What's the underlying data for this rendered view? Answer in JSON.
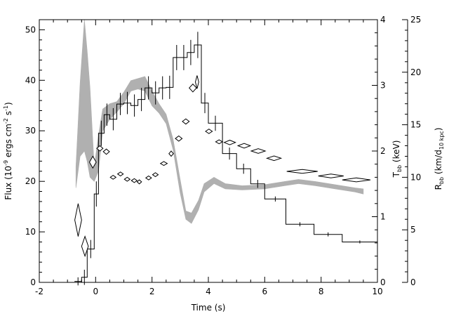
{
  "chart_data": {
    "type": "line",
    "title": "",
    "xlabel": "Time (s)",
    "xlim": [
      -2,
      10
    ],
    "xticks": [
      "-2",
      "0",
      "2",
      "4",
      "6",
      "8",
      "10"
    ],
    "ylabel_left": {
      "main": "Flux (10",
      "sup1": "-9",
      "mid": " ergs cm",
      "sup2": "-2",
      "mid2": " s",
      "sup3": "-1",
      "end": ")"
    },
    "ylim_left": [
      0,
      52
    ],
    "yticks_left": [
      "0",
      "10",
      "20",
      "30",
      "40",
      "50"
    ],
    "ylabel_right1": {
      "main": "T",
      "sub": "bb",
      "end": " (keV)"
    },
    "ylim_right1": [
      0,
      4
    ],
    "yticks_right1": [
      "0",
      "1",
      "2",
      "3",
      "4"
    ],
    "ylabel_right2": {
      "main": "R",
      "sub1": "bb",
      "mid": " (km/d",
      "sub2": "10 kpc",
      "end": ")"
    },
    "ylim_right2": [
      0,
      25
    ],
    "yticks_right2": [
      "0",
      "5",
      "10",
      "15",
      "20",
      "25"
    ],
    "series": [
      {
        "style": "histogram",
        "color": "#000000",
        "bins": [
          {
            "x0": -0.75,
            "x1": -0.5,
            "y": 0.2,
            "err": 0.8
          },
          {
            "x0": -0.5,
            "x1": -0.3,
            "y": 1.0,
            "err": 1.5
          },
          {
            "x0": -0.3,
            "x1": -0.05,
            "y": 6.6,
            "err": 1.8
          },
          {
            "x0": -0.05,
            "x1": 0.1,
            "y": 17.5,
            "err": 2.5
          },
          {
            "x0": 0.1,
            "x1": 0.3,
            "y": 29.5,
            "err": 2.5
          },
          {
            "x0": 0.3,
            "x1": 0.5,
            "y": 33.2,
            "err": 2.2
          },
          {
            "x0": 0.5,
            "x1": 0.75,
            "y": 32.3,
            "err": 2.2
          },
          {
            "x0": 0.75,
            "x1": 1.0,
            "y": 35.3,
            "err": 2.2
          },
          {
            "x0": 1.0,
            "x1": 1.25,
            "y": 35.5,
            "err": 2.2
          },
          {
            "x0": 1.25,
            "x1": 1.5,
            "y": 35.0,
            "err": 2.2
          },
          {
            "x0": 1.5,
            "x1": 1.75,
            "y": 36.2,
            "err": 2.3
          },
          {
            "x0": 1.75,
            "x1": 2.0,
            "y": 38.5,
            "err": 2.3
          },
          {
            "x0": 2.0,
            "x1": 2.25,
            "y": 37.5,
            "err": 2.3
          },
          {
            "x0": 2.25,
            "x1": 2.5,
            "y": 38.5,
            "err": 2.3
          },
          {
            "x0": 2.5,
            "x1": 2.75,
            "y": 38.6,
            "err": 2.3
          },
          {
            "x0": 2.75,
            "x1": 3.0,
            "y": 44.5,
            "err": 2.5
          },
          {
            "x0": 3.0,
            "x1": 3.25,
            "y": 44.5,
            "err": 2.5
          },
          {
            "x0": 3.25,
            "x1": 3.5,
            "y": 45.5,
            "err": 2.5
          },
          {
            "x0": 3.5,
            "x1": 3.75,
            "y": 47.0,
            "err": 2.6
          },
          {
            "x0": 3.75,
            "x1": 4.0,
            "y": 35.5,
            "err": 2.0
          },
          {
            "x0": 4.0,
            "x1": 4.5,
            "y": 31.5,
            "err": 1.5
          },
          {
            "x0": 4.5,
            "x1": 5.0,
            "y": 25.5,
            "err": 1.2
          },
          {
            "x0": 5.0,
            "x1": 5.5,
            "y": 22.5,
            "err": 1.0
          },
          {
            "x0": 5.5,
            "x1": 6.0,
            "y": 19.5,
            "err": 0.8
          },
          {
            "x0": 6.0,
            "x1": 6.75,
            "y": 16.5,
            "err": 0.5
          },
          {
            "x0": 6.75,
            "x1": 7.75,
            "y": 11.5,
            "err": 0.4
          },
          {
            "x0": 7.75,
            "x1": 8.75,
            "y": 9.5,
            "err": 0.4
          },
          {
            "x0": 8.75,
            "x1": 10.0,
            "y": 8.0,
            "err": 0.3
          }
        ]
      },
      {
        "style": "band",
        "axis": "right2",
        "color": "#b0b0b0",
        "points": [
          {
            "x": -0.7,
            "lo": 9.0,
            "hi": 11.0
          },
          {
            "x": -0.55,
            "lo": 12.0,
            "hi": 19.0
          },
          {
            "x": -0.4,
            "lo": 12.5,
            "hi": 25.0
          },
          {
            "x": -0.3,
            "lo": 11.5,
            "hi": 22.0
          },
          {
            "x": -0.2,
            "lo": 10.0,
            "hi": 18.5
          },
          {
            "x": -0.05,
            "lo": 9.6,
            "hi": 11.0
          },
          {
            "x": 0.1,
            "lo": 10.6,
            "hi": 14.0
          },
          {
            "x": 0.25,
            "lo": 14.4,
            "hi": 16.5
          },
          {
            "x": 0.5,
            "lo": 15.5,
            "hi": 17.0
          },
          {
            "x": 0.75,
            "lo": 16.2,
            "hi": 17.2
          },
          {
            "x": 1.0,
            "lo": 17.0,
            "hi": 18.1
          },
          {
            "x": 1.25,
            "lo": 18.2,
            "hi": 19.2
          },
          {
            "x": 1.5,
            "lo": 18.4,
            "hi": 19.4
          },
          {
            "x": 1.75,
            "lo": 18.2,
            "hi": 19.6
          },
          {
            "x": 2.0,
            "lo": 16.8,
            "hi": 18.2
          },
          {
            "x": 2.25,
            "lo": 16.1,
            "hi": 17.0
          },
          {
            "x": 2.5,
            "lo": 15.1,
            "hi": 16.0
          },
          {
            "x": 2.75,
            "lo": 12.6,
            "hi": 13.6
          },
          {
            "x": 3.0,
            "lo": 8.5,
            "hi": 9.8
          },
          {
            "x": 3.2,
            "lo": 6.0,
            "hi": 6.8
          },
          {
            "x": 3.4,
            "lo": 5.6,
            "hi": 6.6
          },
          {
            "x": 3.65,
            "lo": 6.9,
            "hi": 7.8
          },
          {
            "x": 3.85,
            "lo": 8.6,
            "hi": 9.4
          },
          {
            "x": 4.2,
            "lo": 9.4,
            "hi": 10.0
          },
          {
            "x": 4.6,
            "lo": 8.9,
            "hi": 9.4
          },
          {
            "x": 5.2,
            "lo": 8.8,
            "hi": 9.2
          },
          {
            "x": 6.0,
            "lo": 8.9,
            "hi": 9.3
          },
          {
            "x": 6.7,
            "lo": 9.2,
            "hi": 9.6
          },
          {
            "x": 7.2,
            "lo": 9.4,
            "hi": 9.8
          },
          {
            "x": 7.8,
            "lo": 9.2,
            "hi": 9.6
          },
          {
            "x": 8.5,
            "lo": 8.9,
            "hi": 9.3
          },
          {
            "x": 9.2,
            "lo": 8.6,
            "hi": 9.0
          },
          {
            "x": 9.5,
            "lo": 8.4,
            "hi": 8.9
          }
        ]
      },
      {
        "style": "diamonds",
        "axis": "right1",
        "color": "#000000",
        "points": [
          {
            "x": -0.62,
            "y": 0.95,
            "dx": 0.12,
            "dy": 0.25
          },
          {
            "x": -0.38,
            "y": 0.55,
            "dx": 0.12,
            "dy": 0.15
          },
          {
            "x": -0.1,
            "y": 1.83,
            "dx": 0.12,
            "dy": 0.09
          },
          {
            "x": 0.15,
            "y": 2.04,
            "dx": 0.11,
            "dy": 0.04
          },
          {
            "x": 0.38,
            "y": 1.99,
            "dx": 0.11,
            "dy": 0.04
          },
          {
            "x": 0.62,
            "y": 1.6,
            "dx": 0.1,
            "dy": 0.03
          },
          {
            "x": 0.88,
            "y": 1.65,
            "dx": 0.1,
            "dy": 0.03
          },
          {
            "x": 1.12,
            "y": 1.57,
            "dx": 0.1,
            "dy": 0.03
          },
          {
            "x": 1.37,
            "y": 1.55,
            "dx": 0.1,
            "dy": 0.03
          },
          {
            "x": 1.55,
            "y": 1.53,
            "dx": 0.08,
            "dy": 0.03
          },
          {
            "x": 1.88,
            "y": 1.59,
            "dx": 0.1,
            "dy": 0.03
          },
          {
            "x": 2.12,
            "y": 1.64,
            "dx": 0.1,
            "dy": 0.03
          },
          {
            "x": 2.42,
            "y": 1.81,
            "dx": 0.12,
            "dy": 0.03
          },
          {
            "x": 2.68,
            "y": 1.96,
            "dx": 0.08,
            "dy": 0.04
          },
          {
            "x": 2.95,
            "y": 2.19,
            "dx": 0.12,
            "dy": 0.04
          },
          {
            "x": 3.2,
            "y": 2.45,
            "dx": 0.12,
            "dy": 0.04
          },
          {
            "x": 3.45,
            "y": 2.96,
            "dx": 0.13,
            "dy": 0.06
          },
          {
            "x": 3.6,
            "y": 3.05,
            "dx": 0.06,
            "dy": 0.1
          },
          {
            "x": 4.02,
            "y": 2.3,
            "dx": 0.12,
            "dy": 0.035
          },
          {
            "x": 4.38,
            "y": 2.14,
            "dx": 0.12,
            "dy": 0.03
          },
          {
            "x": 4.76,
            "y": 2.13,
            "dx": 0.2,
            "dy": 0.035
          },
          {
            "x": 5.27,
            "y": 2.08,
            "dx": 0.22,
            "dy": 0.035
          },
          {
            "x": 5.77,
            "y": 2.0,
            "dx": 0.25,
            "dy": 0.035
          },
          {
            "x": 6.33,
            "y": 1.89,
            "dx": 0.25,
            "dy": 0.035
          },
          {
            "x": 7.33,
            "y": 1.69,
            "dx": 0.55,
            "dy": 0.03
          },
          {
            "x": 8.35,
            "y": 1.62,
            "dx": 0.45,
            "dy": 0.03
          },
          {
            "x": 9.25,
            "y": 1.56,
            "dx": 0.5,
            "dy": 0.03
          }
        ]
      }
    ]
  }
}
